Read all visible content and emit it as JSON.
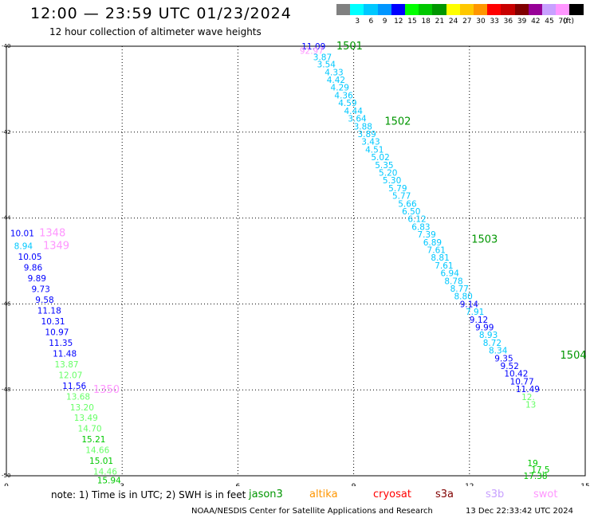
{
  "header": {
    "title": "12:00 — 23:59 UTC 01/23/2024",
    "subtitle": "12 hour collection of altimeter wave heights"
  },
  "scale": {
    "unit": "(ft)",
    "items": [
      {
        "label": "",
        "color": "#808080"
      },
      {
        "label": "3",
        "color": "#00ffff"
      },
      {
        "label": "6",
        "color": "#00c8ff"
      },
      {
        "label": "9",
        "color": "#0096ff"
      },
      {
        "label": "12",
        "color": "#0000ff"
      },
      {
        "label": "15",
        "color": "#00ff00"
      },
      {
        "label": "18",
        "color": "#00c800"
      },
      {
        "label": "21",
        "color": "#009600"
      },
      {
        "label": "24",
        "color": "#ffff00"
      },
      {
        "label": "27",
        "color": "#ffc800"
      },
      {
        "label": "30",
        "color": "#ff9600"
      },
      {
        "label": "33",
        "color": "#ff0000"
      },
      {
        "label": "36",
        "color": "#c80000"
      },
      {
        "label": "39",
        "color": "#800000"
      },
      {
        "label": "42",
        "color": "#960096"
      },
      {
        "label": "45",
        "color": "#c8a0ff"
      },
      {
        "label": "70",
        "color": "#ff96ff"
      },
      {
        "label": "",
        "color": "#000000"
      }
    ]
  },
  "chart_data": {
    "type": "scatter",
    "xlim": [
      0,
      15
    ],
    "ylim": [
      -50,
      -40
    ],
    "x_ticks": [
      "0",
      "3",
      "6",
      "9",
      "12",
      "15"
    ],
    "x_tick_values": [
      0,
      3,
      6,
      9,
      12,
      15
    ],
    "y_ticks": [
      "-40",
      "-42",
      "-44",
      "-46",
      "-48",
      "-50"
    ],
    "y_tick_values": [
      -40,
      -42,
      -44,
      -46,
      -48,
      -50
    ],
    "grid": true,
    "tracks": [
      {
        "label": "1501",
        "x": 8.55,
        "y": -40.0,
        "color": "#009600"
      },
      {
        "label": "1502",
        "x": 9.8,
        "y": -41.75,
        "color": "#009600"
      },
      {
        "label": "1503",
        "x": 12.05,
        "y": -44.5,
        "color": "#009600"
      },
      {
        "label": "1504",
        "x": 14.35,
        "y": -47.2,
        "color": "#009600"
      },
      {
        "label": "1348",
        "x": 0.85,
        "y": -44.35,
        "color": "#ff96ff"
      },
      {
        "label": "1349",
        "x": 0.95,
        "y": -44.65,
        "color": "#ff96ff"
      },
      {
        "label": "1350",
        "x": 2.25,
        "y": -48.0,
        "color": "#ff96ff"
      }
    ],
    "points": [
      {
        "x": 7.65,
        "y": -40.0,
        "v": "11.09",
        "c": "#0000ff"
      },
      {
        "x": 7.6,
        "y": -40.1,
        "v": "92.97",
        "c": "#ff96ff"
      },
      {
        "x": 7.95,
        "y": -40.25,
        "v": "3.87",
        "c": "#00c8ff"
      },
      {
        "x": 8.05,
        "y": -40.42,
        "v": "3.54",
        "c": "#00c8ff"
      },
      {
        "x": 8.25,
        "y": -40.6,
        "v": "4.33",
        "c": "#00c8ff"
      },
      {
        "x": 8.3,
        "y": -40.78,
        "v": "4.42",
        "c": "#00c8ff"
      },
      {
        "x": 8.4,
        "y": -40.96,
        "v": "4.29",
        "c": "#00c8ff"
      },
      {
        "x": 8.5,
        "y": -41.14,
        "v": "4.36",
        "c": "#00c8ff"
      },
      {
        "x": 8.6,
        "y": -41.32,
        "v": "4.59",
        "c": "#00c8ff"
      },
      {
        "x": 8.75,
        "y": -41.5,
        "v": "4.44",
        "c": "#00c8ff"
      },
      {
        "x": 8.85,
        "y": -41.68,
        "v": "3.64",
        "c": "#00c8ff"
      },
      {
        "x": 9.0,
        "y": -41.86,
        "v": "3.88",
        "c": "#00c8ff"
      },
      {
        "x": 9.1,
        "y": -42.04,
        "v": "3.89",
        "c": "#00c8ff"
      },
      {
        "x": 9.2,
        "y": -42.22,
        "v": "3.43",
        "c": "#00c8ff"
      },
      {
        "x": 9.3,
        "y": -42.4,
        "v": "4.51",
        "c": "#00c8ff"
      },
      {
        "x": 9.45,
        "y": -42.58,
        "v": "5.02",
        "c": "#00c8ff"
      },
      {
        "x": 9.55,
        "y": -42.76,
        "v": "5.35",
        "c": "#00c8ff"
      },
      {
        "x": 9.65,
        "y": -42.94,
        "v": "5.20",
        "c": "#00c8ff"
      },
      {
        "x": 9.75,
        "y": -43.12,
        "v": "5.30",
        "c": "#00c8ff"
      },
      {
        "x": 9.9,
        "y": -43.3,
        "v": "5.79",
        "c": "#00c8ff"
      },
      {
        "x": 10.0,
        "y": -43.48,
        "v": "5.77",
        "c": "#00c8ff"
      },
      {
        "x": 10.15,
        "y": -43.66,
        "v": "5.66",
        "c": "#00c8ff"
      },
      {
        "x": 10.25,
        "y": -43.84,
        "v": "6.50",
        "c": "#00c8ff"
      },
      {
        "x": 10.4,
        "y": -44.02,
        "v": "6.12",
        "c": "#00c8ff"
      },
      {
        "x": 10.5,
        "y": -44.2,
        "v": "6.83",
        "c": "#00c8ff"
      },
      {
        "x": 10.65,
        "y": -44.38,
        "v": "7.39",
        "c": "#00c8ff"
      },
      {
        "x": 10.8,
        "y": -44.56,
        "v": "6.89",
        "c": "#00c8ff"
      },
      {
        "x": 10.9,
        "y": -44.74,
        "v": "7.61",
        "c": "#00c8ff"
      },
      {
        "x": 11.0,
        "y": -44.92,
        "v": "8.81",
        "c": "#00c8ff"
      },
      {
        "x": 11.1,
        "y": -45.1,
        "v": "7.61",
        "c": "#00c8ff"
      },
      {
        "x": 11.25,
        "y": -45.28,
        "v": "6.94",
        "c": "#00c8ff"
      },
      {
        "x": 11.35,
        "y": -45.46,
        "v": "8.78",
        "c": "#00c8ff"
      },
      {
        "x": 11.5,
        "y": -45.64,
        "v": "8.77",
        "c": "#00c8ff"
      },
      {
        "x": 11.6,
        "y": -45.82,
        "v": "8.80",
        "c": "#00c8ff"
      },
      {
        "x": 11.75,
        "y": -46.0,
        "v": "9.14",
        "c": "#0000ff"
      },
      {
        "x": 11.9,
        "y": -46.18,
        "v": "7.91",
        "c": "#00c8ff"
      },
      {
        "x": 12.0,
        "y": -46.36,
        "v": "9.12",
        "c": "#0000ff"
      },
      {
        "x": 12.15,
        "y": -46.54,
        "v": "9.99",
        "c": "#0000ff"
      },
      {
        "x": 12.25,
        "y": -46.72,
        "v": "8.93",
        "c": "#00c8ff"
      },
      {
        "x": 12.35,
        "y": -46.9,
        "v": "8.72",
        "c": "#00c8ff"
      },
      {
        "x": 12.5,
        "y": -47.08,
        "v": "8.34",
        "c": "#00c8ff"
      },
      {
        "x": 12.65,
        "y": -47.26,
        "v": "9.35",
        "c": "#0000ff"
      },
      {
        "x": 12.8,
        "y": -47.44,
        "v": "9.52",
        "c": "#0000ff"
      },
      {
        "x": 12.9,
        "y": -47.62,
        "v": "10.42",
        "c": "#0000ff"
      },
      {
        "x": 13.05,
        "y": -47.8,
        "v": "10.77",
        "c": "#0000ff"
      },
      {
        "x": 13.2,
        "y": -47.98,
        "v": "11.49",
        "c": "#0000ff"
      },
      {
        "x": 13.35,
        "y": -48.16,
        "v": "12.",
        "c": "#66ff66"
      },
      {
        "x": 13.45,
        "y": -48.34,
        "v": "13",
        "c": "#66ff66"
      },
      {
        "x": 13.5,
        "y": -49.7,
        "v": "19",
        "c": "#00c800"
      },
      {
        "x": 13.6,
        "y": -49.85,
        "v": "17.5",
        "c": "#00c800"
      },
      {
        "x": 13.4,
        "y": -50.0,
        "v": "17.38",
        "c": "#00c800"
      },
      {
        "x": 0.1,
        "y": -44.35,
        "v": "10.01",
        "c": "#0000ff"
      },
      {
        "x": 0.2,
        "y": -44.65,
        "v": "8.94",
        "c": "#00c8ff"
      },
      {
        "x": 0.3,
        "y": -44.9,
        "v": "10.05",
        "c": "#0000ff"
      },
      {
        "x": 0.45,
        "y": -45.15,
        "v": "9.86",
        "c": "#0000ff"
      },
      {
        "x": 0.55,
        "y": -45.4,
        "v": "9.89",
        "c": "#0000ff"
      },
      {
        "x": 0.65,
        "y": -45.65,
        "v": "9.73",
        "c": "#0000ff"
      },
      {
        "x": 0.75,
        "y": -45.9,
        "v": "9.58",
        "c": "#0000ff"
      },
      {
        "x": 0.8,
        "y": -46.15,
        "v": "11.18",
        "c": "#0000ff"
      },
      {
        "x": 0.9,
        "y": -46.4,
        "v": "10.31",
        "c": "#0000ff"
      },
      {
        "x": 1.0,
        "y": -46.65,
        "v": "10.97",
        "c": "#0000ff"
      },
      {
        "x": 1.1,
        "y": -46.9,
        "v": "11.35",
        "c": "#0000ff"
      },
      {
        "x": 1.2,
        "y": -47.15,
        "v": "11.48",
        "c": "#0000ff"
      },
      {
        "x": 1.25,
        "y": -47.4,
        "v": "13.87",
        "c": "#66ff66"
      },
      {
        "x": 1.35,
        "y": -47.65,
        "v": "12.07",
        "c": "#66ff66"
      },
      {
        "x": 1.45,
        "y": -47.9,
        "v": "11.56",
        "c": "#0000ff"
      },
      {
        "x": 1.55,
        "y": -48.15,
        "v": "13.68",
        "c": "#66ff66"
      },
      {
        "x": 1.65,
        "y": -48.4,
        "v": "13.20",
        "c": "#66ff66"
      },
      {
        "x": 1.75,
        "y": -48.65,
        "v": "13.49",
        "c": "#66ff66"
      },
      {
        "x": 1.85,
        "y": -48.9,
        "v": "14.70",
        "c": "#66ff66"
      },
      {
        "x": 1.95,
        "y": -49.15,
        "v": "15.21",
        "c": "#00c800"
      },
      {
        "x": 2.05,
        "y": -49.4,
        "v": "14.66",
        "c": "#66ff66"
      },
      {
        "x": 2.15,
        "y": -49.65,
        "v": "15.01",
        "c": "#00c800"
      },
      {
        "x": 2.25,
        "y": -49.9,
        "v": "14.46",
        "c": "#66ff66"
      },
      {
        "x": 2.35,
        "y": -50.1,
        "v": "15.94",
        "c": "#00c800"
      }
    ]
  },
  "footer": {
    "note": "note: 1) Time is in UTC; 2) SWH is in feet",
    "satellites": [
      {
        "name": "jason3",
        "color": "#009600"
      },
      {
        "name": "altika",
        "color": "#ff9600"
      },
      {
        "name": "cryosat",
        "color": "#ff0000"
      },
      {
        "name": "s3a",
        "color": "#800000"
      },
      {
        "name": "s3b",
        "color": "#c8a0ff"
      },
      {
        "name": "swot",
        "color": "#ff96ff"
      }
    ],
    "credit": "NOAA/NESDIS Center for Satellite Applications and Research",
    "timestamp": "13 Dec 22:33:42 UTC 2024"
  }
}
